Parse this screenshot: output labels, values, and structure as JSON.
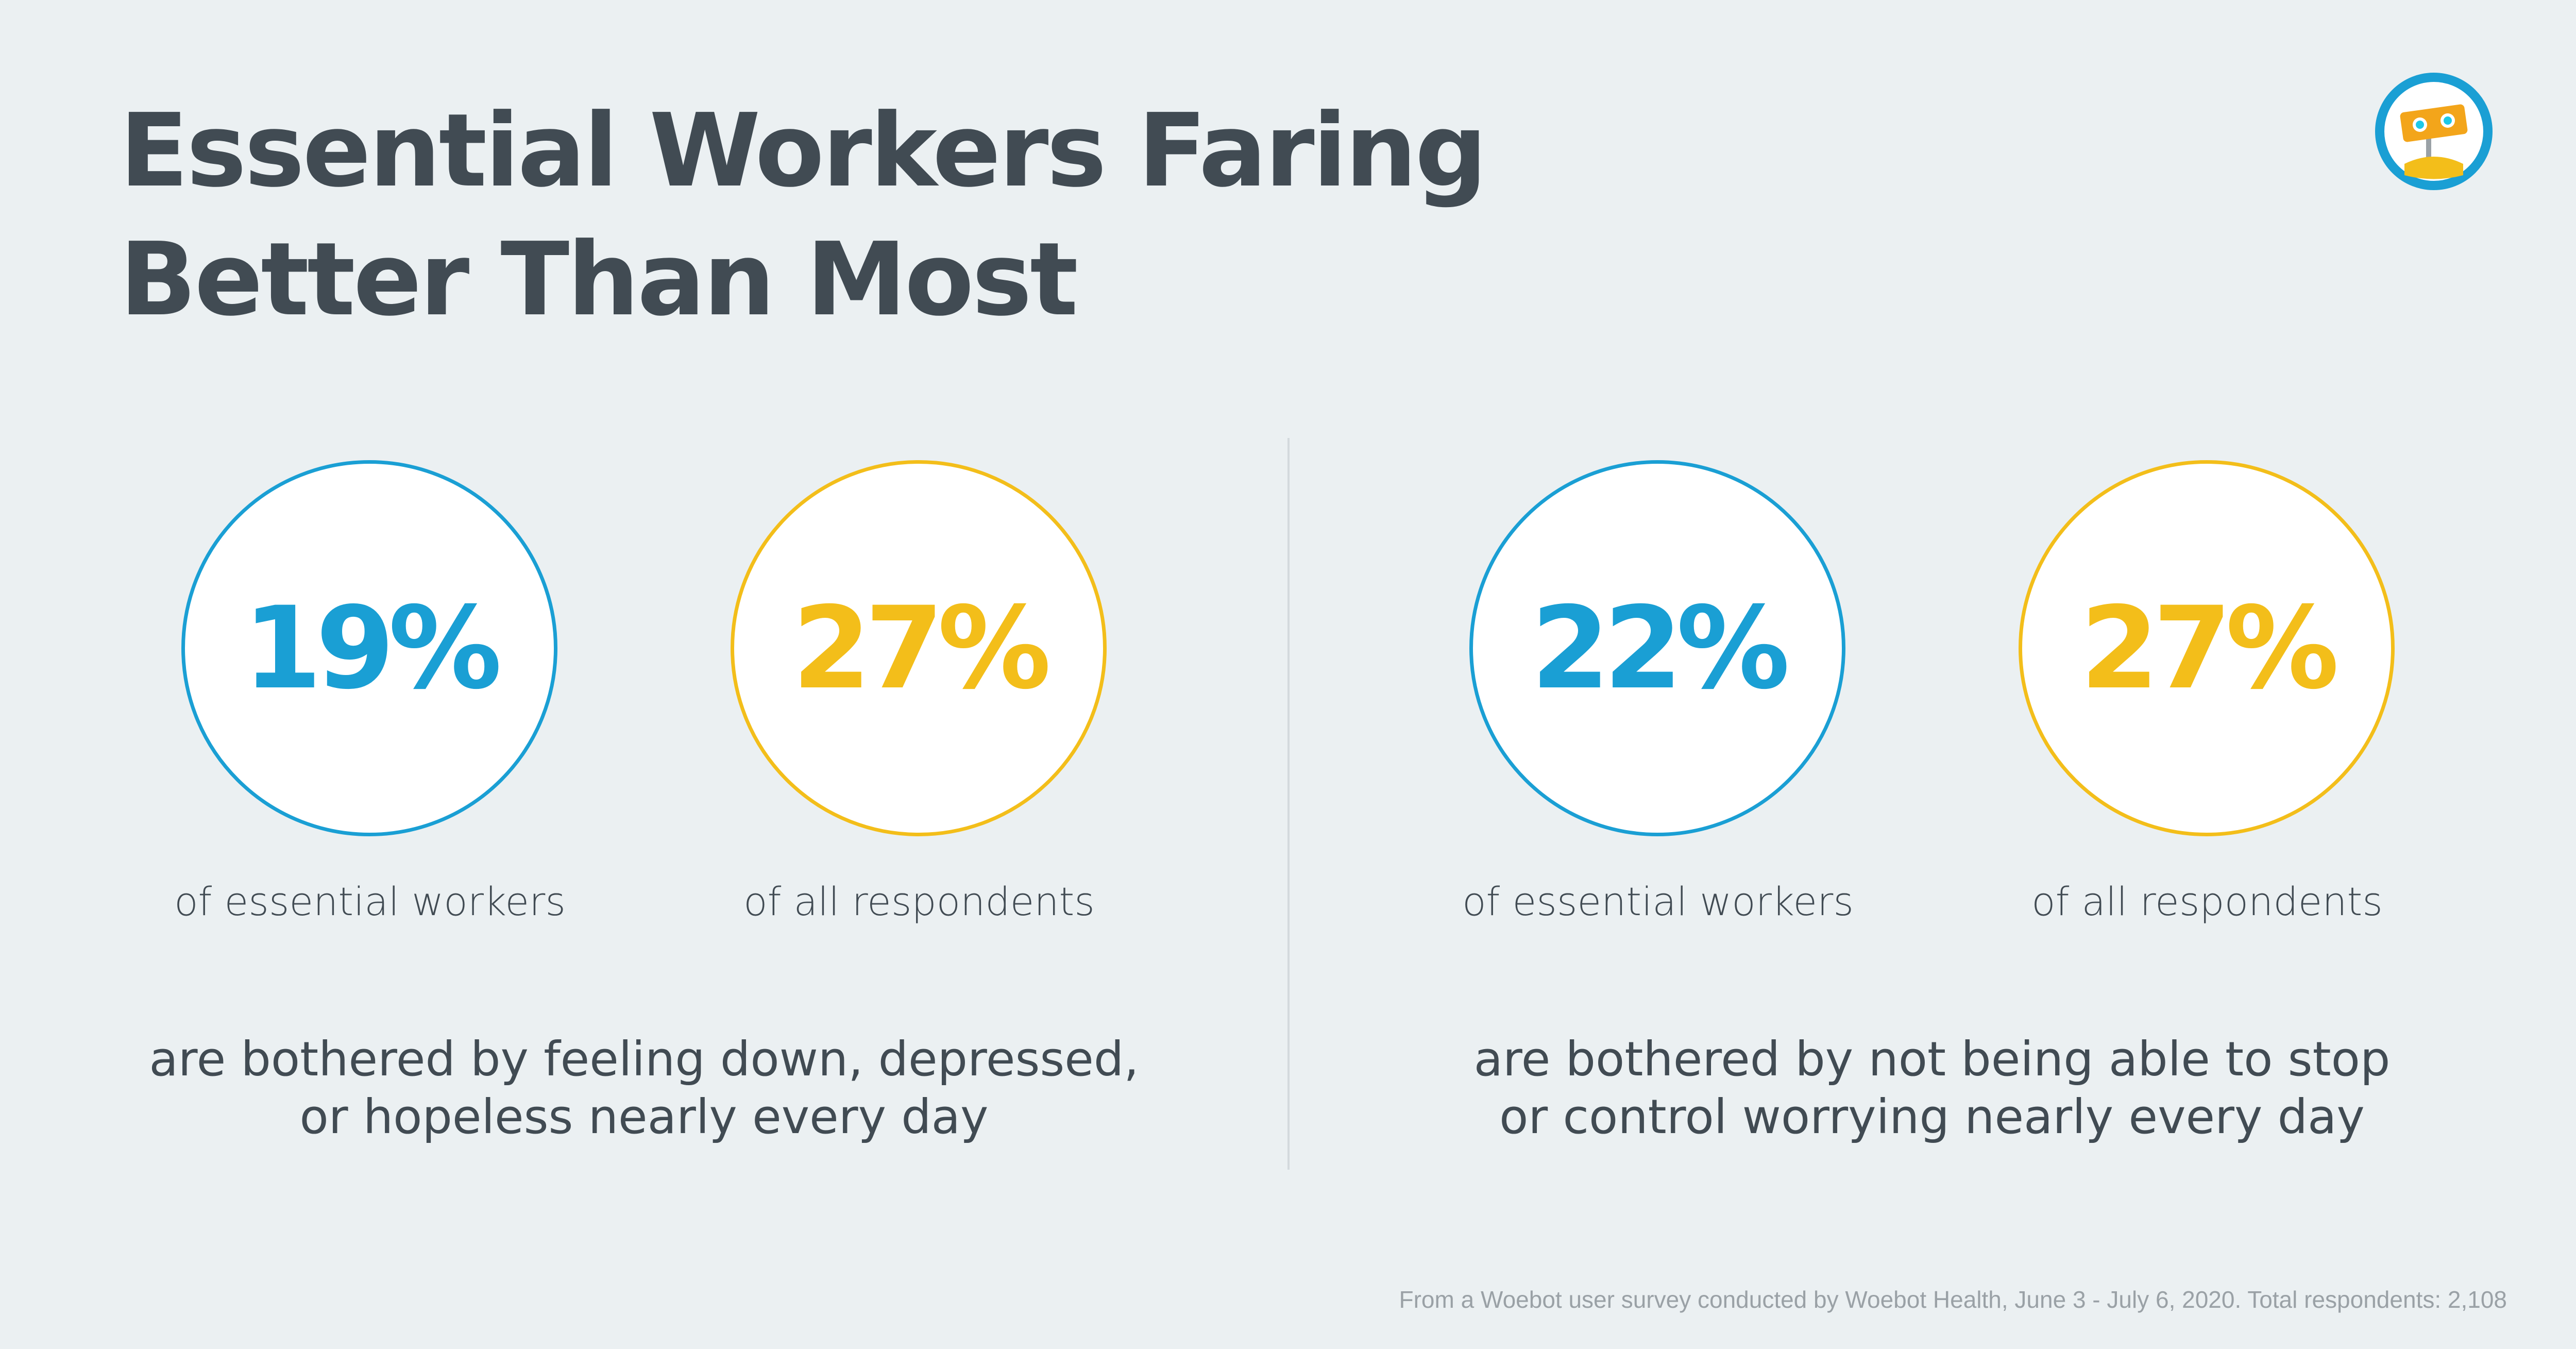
{
  "title_lines": [
    "Essential Workers Faring",
    "Better Than Most"
  ],
  "colors": {
    "essential": "#1a9fd4",
    "all": "#f3be1a",
    "text": "#414b53",
    "background": "#ebf0f2"
  },
  "chart_data": [
    {
      "type": "table",
      "categories": [
        "of essential workers",
        "of all respondents"
      ],
      "values": [
        19,
        27
      ],
      "value_labels": [
        "19%",
        "27%"
      ],
      "caption_lines": [
        "are bothered by feeling down, depressed,",
        "or hopeless nearly every day"
      ]
    },
    {
      "type": "table",
      "categories": [
        "of essential workers",
        "of all respondents"
      ],
      "values": [
        22,
        27
      ],
      "value_labels": [
        "22%",
        "27%"
      ],
      "caption_lines": [
        "are bothered by not being able to stop",
        "or control worrying nearly every day"
      ]
    }
  ],
  "footnote": "From a Woebot user survey conducted by Woebot Health, June 3 - July 6, 2020. Total respondents: 2,108",
  "logo_icon": "woebot-robot-icon"
}
